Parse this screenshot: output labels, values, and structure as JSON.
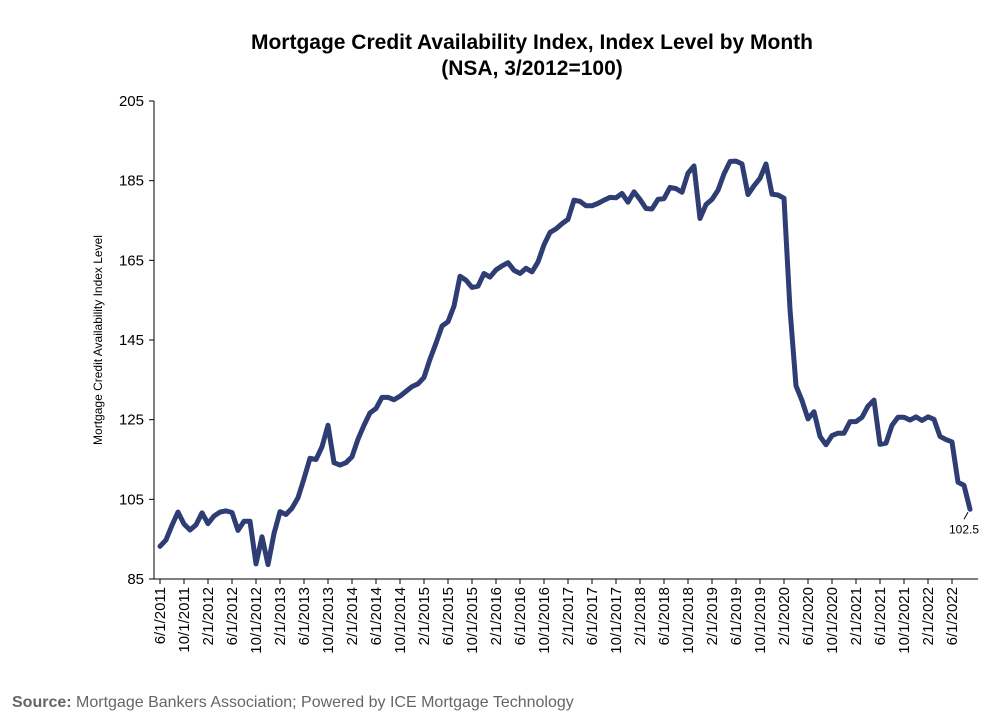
{
  "chart_data": {
    "type": "line",
    "title": "Mortgage Credit Availability Index, Index Level by Month",
    "subtitle": "(NSA, 3/2012=100)",
    "ylabel": "Mortgage Credit Availability Index Level",
    "xlabel": "",
    "ylim": [
      85,
      205
    ],
    "yticks": [
      "85",
      "105",
      "125",
      "145",
      "165",
      "185",
      "205"
    ],
    "x_tick_labels": [
      "6/1/2011",
      "10/1/2011",
      "2/1/2012",
      "6/1/2012",
      "10/1/2012",
      "2/1/2013",
      "6/1/2013",
      "10/1/2013",
      "2/1/2014",
      "6/1/2014",
      "10/1/2014",
      "2/1/2015",
      "6/1/2015",
      "10/1/2015",
      "2/1/2016",
      "6/1/2016",
      "10/1/2016",
      "2/1/2017",
      "6/1/2017",
      "10/1/2017",
      "2/1/2018",
      "6/1/2018",
      "10/1/2018",
      "2/1/2019",
      "6/1/2019",
      "10/1/2019",
      "2/1/2020",
      "6/1/2020",
      "10/1/2020",
      "2/1/2021",
      "6/1/2021",
      "10/1/2021",
      "2/1/2022",
      "6/1/2022"
    ],
    "grid": false,
    "legend": "none",
    "line_color": "#2e3d73",
    "end_label": "102.5",
    "series": [
      {
        "x": [
          "6/1/2011",
          "7/1/2011",
          "8/1/2011",
          "9/1/2011",
          "10/1/2011",
          "11/1/2011",
          "12/1/2011",
          "1/1/2012",
          "2/1/2012",
          "3/1/2012",
          "4/1/2012",
          "5/1/2012",
          "6/1/2012",
          "7/1/2012",
          "8/1/2012",
          "9/1/2012",
          "10/1/2012",
          "11/1/2012",
          "12/1/2012",
          "1/1/2013",
          "2/1/2013",
          "3/1/2013",
          "4/1/2013",
          "5/1/2013",
          "6/1/2013",
          "7/1/2013",
          "8/1/2013",
          "9/1/2013",
          "10/1/2013",
          "11/1/2013",
          "12/1/2013",
          "1/1/2014",
          "2/1/2014",
          "3/1/2014",
          "4/1/2014",
          "5/1/2014",
          "6/1/2014",
          "7/1/2014",
          "8/1/2014",
          "9/1/2014",
          "10/1/2014",
          "11/1/2014",
          "12/1/2014",
          "1/1/2015",
          "2/1/2015",
          "3/1/2015",
          "4/1/2015",
          "5/1/2015",
          "6/1/2015",
          "7/1/2015",
          "8/1/2015",
          "9/1/2015",
          "10/1/2015",
          "11/1/2015",
          "12/1/2015",
          "1/1/2016",
          "2/1/2016",
          "3/1/2016",
          "4/1/2016",
          "5/1/2016",
          "6/1/2016",
          "7/1/2016",
          "8/1/2016",
          "9/1/2016",
          "10/1/2016",
          "11/1/2016",
          "12/1/2016",
          "1/1/2017",
          "2/1/2017",
          "3/1/2017",
          "4/1/2017",
          "5/1/2017",
          "6/1/2017",
          "7/1/2017",
          "8/1/2017",
          "9/1/2017",
          "10/1/2017",
          "11/1/2017",
          "12/1/2017",
          "1/1/2018",
          "2/1/2018",
          "3/1/2018",
          "4/1/2018",
          "5/1/2018",
          "6/1/2018",
          "7/1/2018",
          "8/1/2018",
          "9/1/2018",
          "10/1/2018",
          "11/1/2018",
          "12/1/2018",
          "1/1/2019",
          "2/1/2019",
          "3/1/2019",
          "4/1/2019",
          "5/1/2019",
          "6/1/2019",
          "7/1/2019",
          "8/1/2019",
          "9/1/2019",
          "10/1/2019",
          "11/1/2019",
          "12/1/2019",
          "1/1/2020",
          "2/1/2020",
          "3/1/2020",
          "4/1/2020",
          "5/1/2020",
          "6/1/2020",
          "7/1/2020",
          "8/1/2020",
          "9/1/2020",
          "10/1/2020",
          "11/1/2020",
          "12/1/2020",
          "1/1/2021",
          "2/1/2021",
          "3/1/2021",
          "4/1/2021",
          "5/1/2021",
          "6/1/2021",
          "7/1/2021",
          "8/1/2021",
          "9/1/2021",
          "10/1/2021",
          "11/1/2021",
          "12/1/2021",
          "1/1/2022",
          "2/1/2022",
          "3/1/2022",
          "4/1/2022",
          "5/1/2022",
          "6/1/2022",
          "7/1/2022",
          "8/1/2022",
          "9/1/2022"
        ],
        "values": [
          93.2,
          94.8,
          98.5,
          101.8,
          98.8,
          97.3,
          98.6,
          101.6,
          98.9,
          100.8,
          101.8,
          102.1,
          101.7,
          97.2,
          99.5,
          99.5,
          88.8,
          95.6,
          88.6,
          96.4,
          101.9,
          101.2,
          102.8,
          105.4,
          110.2,
          115.3,
          115.0,
          118.2,
          123.6,
          114.2,
          113.6,
          114.2,
          115.7,
          120.1,
          123.6,
          126.7,
          127.8,
          130.6,
          130.6,
          130.0,
          130.9,
          132.1,
          133.3,
          134.0,
          135.6,
          140.2,
          144.2,
          148.5,
          149.6,
          153.5,
          161.0,
          160.0,
          158.2,
          158.5,
          161.7,
          160.8,
          162.6,
          163.6,
          164.4,
          162.5,
          161.7,
          163.0,
          162.1,
          164.6,
          168.9,
          172.0,
          172.9,
          174.2,
          175.3,
          180.1,
          179.8,
          178.7,
          178.7,
          179.3,
          180.1,
          180.8,
          180.7,
          181.8,
          179.6,
          182.2,
          180.3,
          178.0,
          177.9,
          180.3,
          180.5,
          183.3,
          183.0,
          182.1,
          186.9,
          188.7,
          175.5,
          179.0,
          180.3,
          182.6,
          186.7,
          189.8,
          189.9,
          189.2,
          181.5,
          183.7,
          185.6,
          189.2,
          181.6,
          181.4,
          180.6,
          152.7,
          133.5,
          129.8,
          125.2,
          127.0,
          120.8,
          118.7,
          121.0,
          121.6,
          121.6,
          124.5,
          124.5,
          125.6,
          128.4,
          129.9,
          118.8,
          119.1,
          123.6,
          125.6,
          125.6,
          124.9,
          125.7,
          124.8,
          125.7,
          125.1,
          120.8,
          120.0,
          119.4,
          109.3,
          108.5,
          102.5
        ]
      }
    ]
  },
  "source": {
    "label": "Source:",
    "text": " Mortgage Bankers Association; Powered by ICE Mortgage Technology"
  }
}
